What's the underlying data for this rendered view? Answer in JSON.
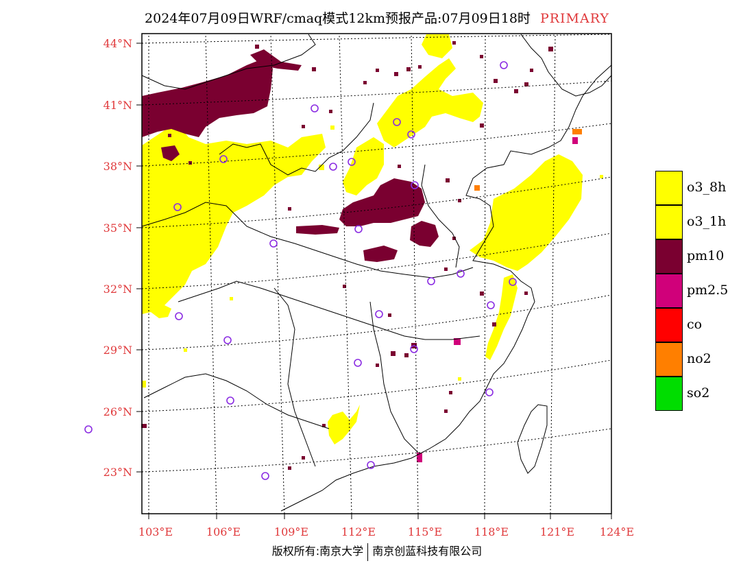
{
  "title": {
    "main": "2024年07月09日WRF/cmaq模式12km预报产品:07月09日18时",
    "tag": "PRIMARY"
  },
  "axes": {
    "lat_labels": [
      "44°N",
      "41°N",
      "38°N",
      "35°N",
      "32°N",
      "29°N",
      "26°N",
      "23°N"
    ],
    "lon_labels": [
      "103°E",
      "106°E",
      "109°E",
      "112°E",
      "115°E",
      "118°E",
      "121°E",
      "124°E"
    ]
  },
  "legend": [
    {
      "label": "o3_8h",
      "color": "#ffff00"
    },
    {
      "label": "o3_1h",
      "color": "#ffff00"
    },
    {
      "label": "pm10",
      "color": "#7a0030"
    },
    {
      "label": "pm2.5",
      "color": "#d0007a"
    },
    {
      "label": "co",
      "color": "#ff0000"
    },
    {
      "label": "no2",
      "color": "#ff7f00"
    },
    {
      "label": "so2",
      "color": "#00dd00"
    }
  ],
  "colors": {
    "o3": "#ffff00",
    "pm10": "#7a0030",
    "pm25": "#d0007a",
    "no2": "#ff7f00",
    "station": "#8a2be2",
    "label_red": "#e0393b"
  },
  "footer": {
    "left": "版权所有:南京大学",
    "right": "南京创蓝科技有限公司"
  }
}
